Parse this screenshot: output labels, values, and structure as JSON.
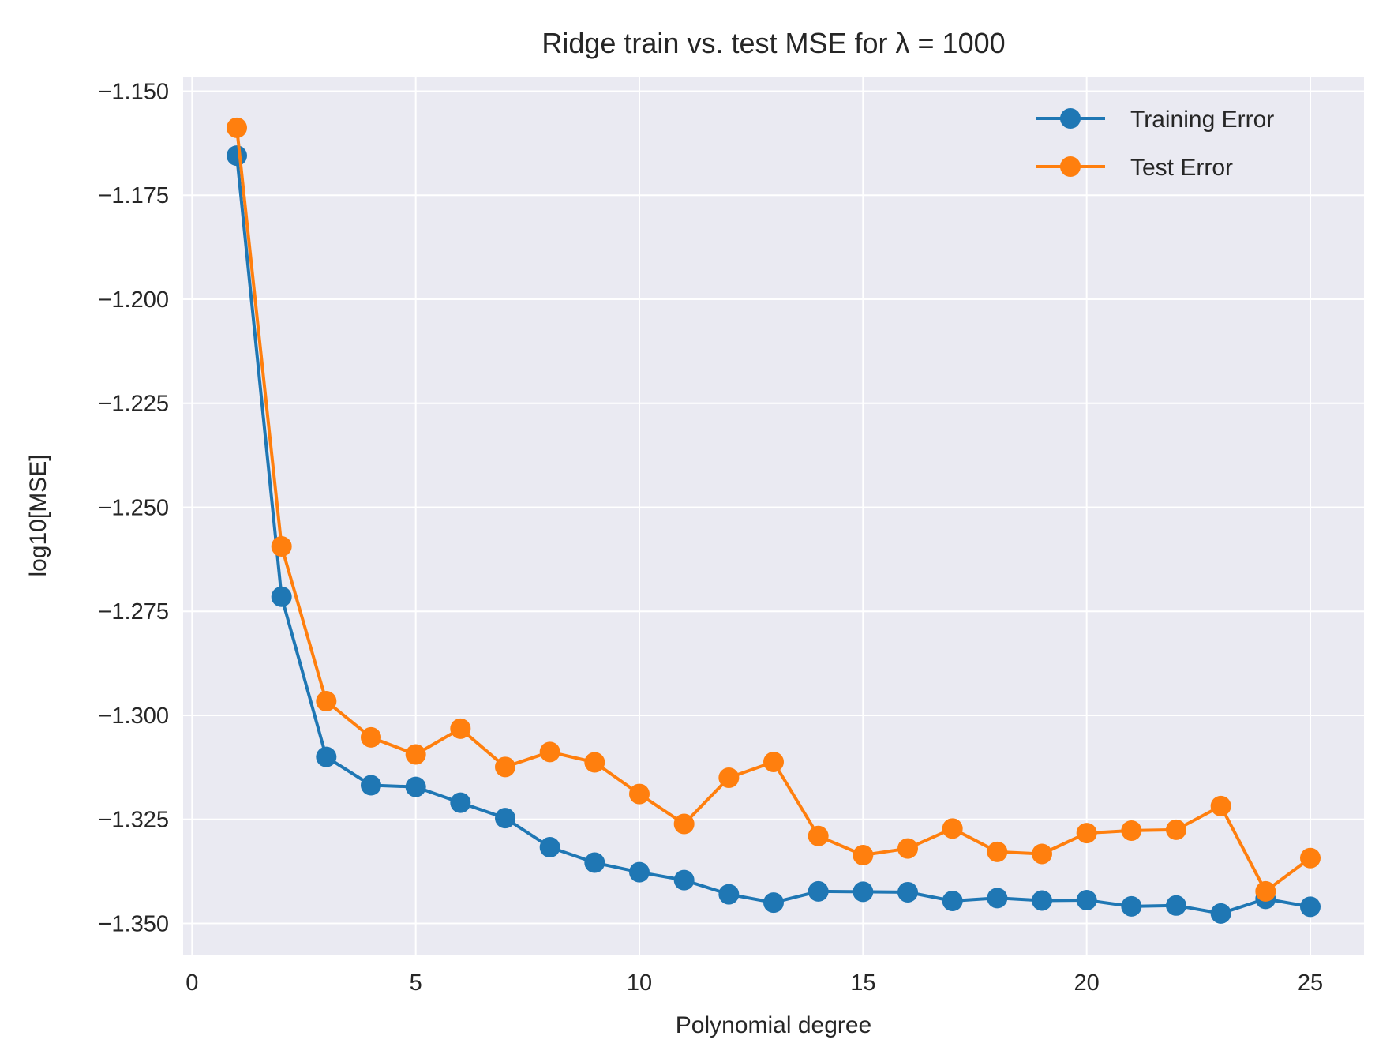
{
  "chart_data": {
    "type": "line",
    "title": "Ridge train vs. test MSE for λ =  1000",
    "xlabel": "Polynomial degree",
    "ylabel": "log10[MSE]",
    "xlim": [
      -0.2,
      26.2
    ],
    "ylim": [
      -1.3575,
      -1.1465
    ],
    "x_ticks": [
      0,
      5,
      10,
      15,
      20,
      25
    ],
    "x_tick_labels": [
      "0",
      "5",
      "10",
      "15",
      "20",
      "25"
    ],
    "y_ticks": [
      -1.15,
      -1.175,
      -1.2,
      -1.225,
      -1.25,
      -1.275,
      -1.3,
      -1.325,
      -1.35
    ],
    "y_tick_labels": [
      "−1.150",
      "−1.175",
      "−1.200",
      "−1.225",
      "−1.250",
      "−1.275",
      "−1.300",
      "−1.325",
      "−1.350"
    ],
    "grid": true,
    "legend_position": "top-right",
    "x": [
      1,
      2,
      3,
      4,
      5,
      6,
      7,
      8,
      9,
      10,
      11,
      12,
      13,
      14,
      15,
      16,
      17,
      18,
      19,
      20,
      21,
      22,
      23,
      24,
      25
    ],
    "series": [
      {
        "name": "Training Error",
        "color": "#1f77b4",
        "values": [
          -1.1655,
          -1.2715,
          -1.31,
          -1.3168,
          -1.3172,
          -1.321,
          -1.3247,
          -1.3317,
          -1.3354,
          -1.3377,
          -1.3396,
          -1.343,
          -1.345,
          -1.3423,
          -1.3424,
          -1.3425,
          -1.3446,
          -1.3439,
          -1.3445,
          -1.3444,
          -1.3459,
          -1.3457,
          -1.3476,
          -1.3441,
          -1.346
        ]
      },
      {
        "name": "Test Error",
        "color": "#ff7f0e",
        "values": [
          -1.1588,
          -1.2594,
          -1.2966,
          -1.3053,
          -1.3094,
          -1.3032,
          -1.3124,
          -1.3088,
          -1.3113,
          -1.3189,
          -1.3261,
          -1.315,
          -1.3112,
          -1.329,
          -1.3336,
          -1.332,
          -1.3272,
          -1.3328,
          -1.3333,
          -1.3283,
          -1.3277,
          -1.3275,
          -1.3218,
          -1.3423,
          -1.3343
        ]
      }
    ]
  }
}
